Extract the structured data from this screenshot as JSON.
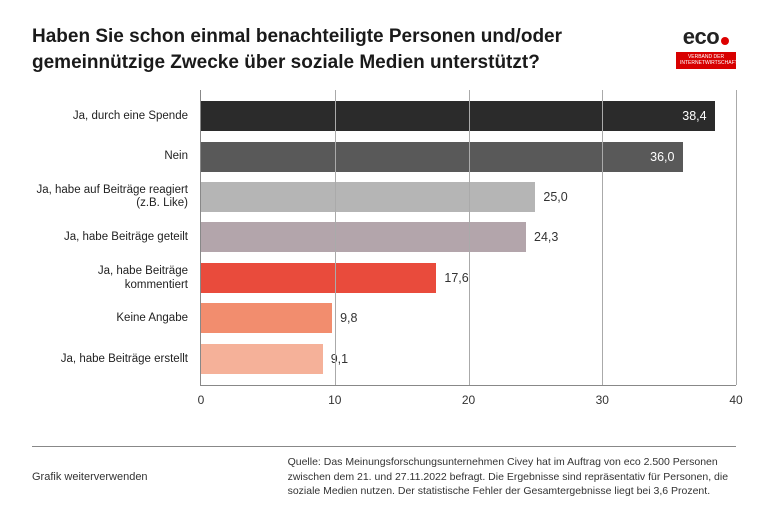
{
  "title": "Haben Sie schon einmal benachteiligte Personen und/oder gemeinnützige Zwecke über soziale Medien unterstützt?",
  "logo": {
    "text": "eco",
    "tagline": "VERBAND DER INTERNETWIRTSCHAFT"
  },
  "chart": {
    "type": "bar-horizontal",
    "x_max": 40,
    "ticks": [
      0,
      10,
      20,
      30,
      40
    ],
    "grid_color": "#aaaaaa",
    "axis_color": "#888888",
    "background_color": "#ffffff",
    "label_fontsize": 12,
    "category_fontsize": 11.5,
    "bars": [
      {
        "category": "Ja, durch eine Spende",
        "value": 38.4,
        "label": "38,4",
        "color": "#2b2b2b",
        "text_color": "#ffffff"
      },
      {
        "category": "Nein",
        "value": 36.0,
        "label": "36,0",
        "color": "#595959",
        "text_color": "#ffffff"
      },
      {
        "category": "Ja, habe auf Beiträge reagiert (z.B. Like)",
        "value": 25.0,
        "label": "25,0",
        "color": "#b5b5b5",
        "text_color": "#333333"
      },
      {
        "category": "Ja, habe Beiträge geteilt",
        "value": 24.3,
        "label": "24,3",
        "color": "#b3a5ab",
        "text_color": "#333333"
      },
      {
        "category": "Ja, habe Beiträge kommentiert",
        "value": 17.6,
        "label": "17,6",
        "color": "#e94b3c",
        "text_color": "#333333"
      },
      {
        "category": "Keine Angabe",
        "value": 9.8,
        "label": "9,8",
        "color": "#f28d6e",
        "text_color": "#333333"
      },
      {
        "category": "Ja, habe Beiträge erstellt",
        "value": 9.1,
        "label": "9,1",
        "color": "#f5b199",
        "text_color": "#333333"
      }
    ]
  },
  "footer": {
    "reuse": "Grafik weiterverwenden",
    "source": "Quelle: Das Meinungsforschungsunternehmen Civey hat im Auftrag von eco 2.500 Personen zwischen dem 21. und 27.11.2022 befragt. Die Ergebnisse sind repräsentativ für Personen, die soziale Medien nutzen. Der statistische Fehler der Gesamtergebnisse liegt bei 3,6 Prozent."
  }
}
